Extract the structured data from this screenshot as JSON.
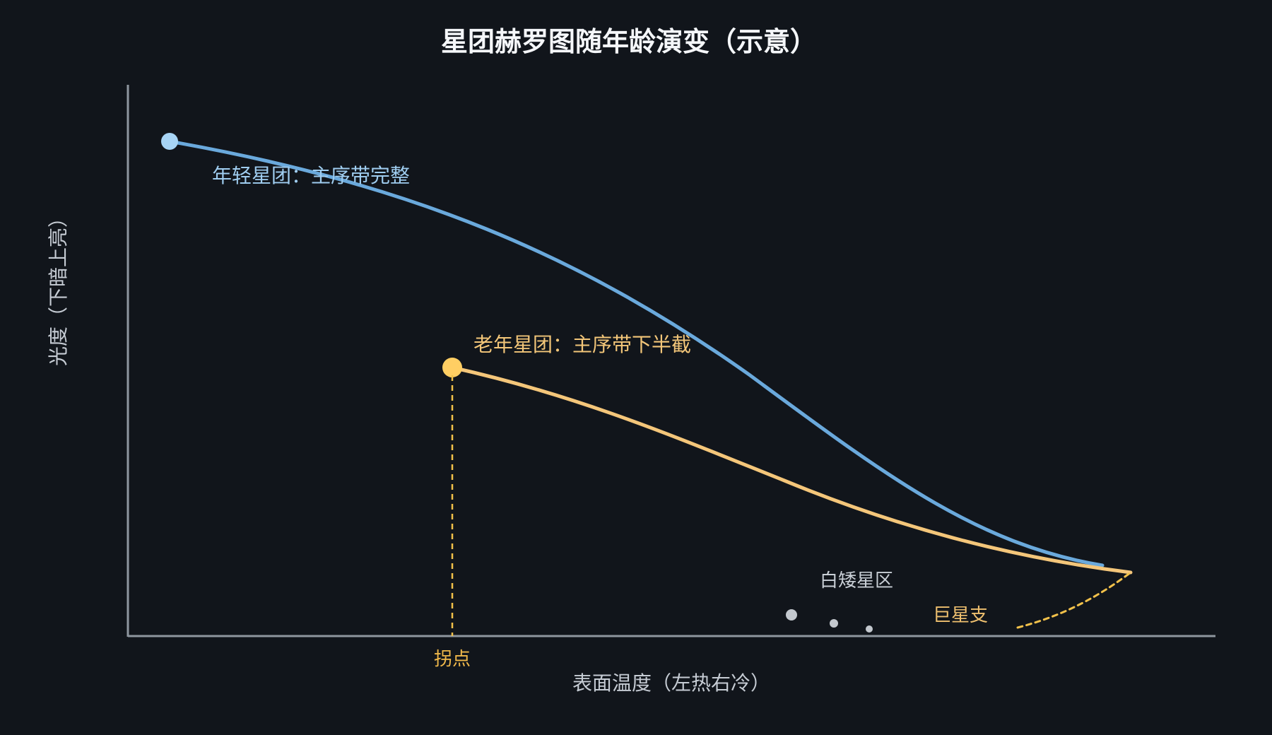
{
  "title": "星团赫罗图随年龄演变（示意）",
  "axes": {
    "x_label": "表面温度（左热右冷）",
    "y_label": "光度（下暗上亮）"
  },
  "curves": {
    "young": {
      "label": "年轻星团：主序带完整",
      "color": "#6aa9dc"
    },
    "old": {
      "label": "老年星团：主序带下半截",
      "color": "#f4c67a"
    }
  },
  "annotations": {
    "turnoff_label": "拐点",
    "white_dwarf_label": "白矮星区",
    "giant_branch_label": "巨星支"
  },
  "colors": {
    "background": "#11151b",
    "axis": "#8e969f",
    "young_point": "#a7d4f5",
    "old_point": "#ffce63",
    "turnoff_line": "#f2c14a",
    "white_dwarf_dots": "#c3c8ce"
  }
}
